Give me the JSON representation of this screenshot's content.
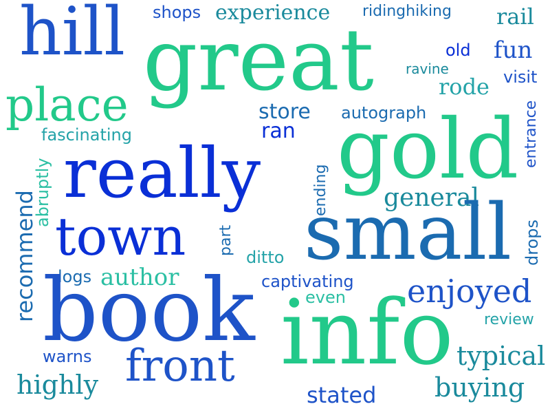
{
  "colors": {
    "blue_dark": "#0a2fd6",
    "blue": "#1e53c8",
    "steel": "#1b6bb0",
    "teal_dark": "#1a8a9c",
    "teal": "#24a3a8",
    "aqua": "#2bbfa3",
    "green": "#22c98a"
  },
  "words": [
    {
      "text": "hill"
    },
    {
      "text": "great"
    },
    {
      "text": "shops"
    },
    {
      "text": "experience"
    },
    {
      "text": "ridinghiking"
    },
    {
      "text": "rail"
    },
    {
      "text": "old"
    },
    {
      "text": "fun"
    },
    {
      "text": "ravine"
    },
    {
      "text": "visit"
    },
    {
      "text": "rode"
    },
    {
      "text": "place"
    },
    {
      "text": "store"
    },
    {
      "text": "autograph"
    },
    {
      "text": "entrance"
    },
    {
      "text": "ran"
    },
    {
      "text": "fascinating"
    },
    {
      "text": "gold"
    },
    {
      "text": "really"
    },
    {
      "text": "recommend"
    },
    {
      "text": "abruptly"
    },
    {
      "text": "ending"
    },
    {
      "text": "general"
    },
    {
      "text": "town"
    },
    {
      "text": "part"
    },
    {
      "text": "small"
    },
    {
      "text": "drops"
    },
    {
      "text": "ditto"
    },
    {
      "text": "logs"
    },
    {
      "text": "author"
    },
    {
      "text": "captivating"
    },
    {
      "text": "enjoyed"
    },
    {
      "text": "even"
    },
    {
      "text": "book"
    },
    {
      "text": "info"
    },
    {
      "text": "review"
    },
    {
      "text": "warns"
    },
    {
      "text": "typical"
    },
    {
      "text": "front"
    },
    {
      "text": "highly"
    },
    {
      "text": "buying"
    },
    {
      "text": "stated"
    }
  ]
}
